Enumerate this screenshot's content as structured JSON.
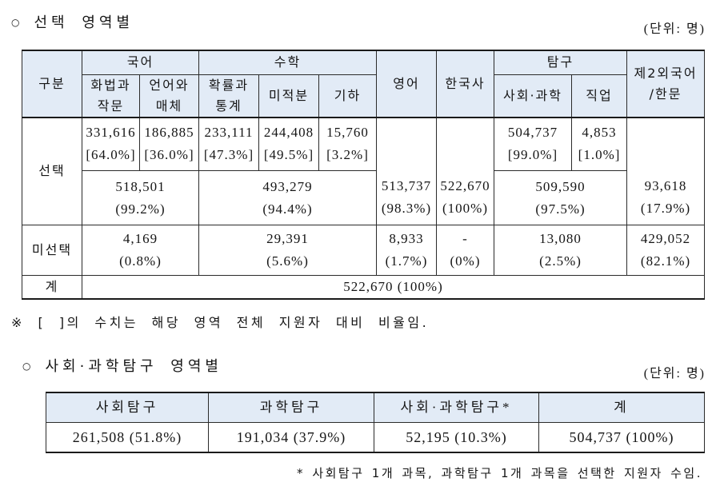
{
  "colors": {
    "header_bg": "#e2ebf6",
    "border": "#2b2b2b",
    "text": "#151515"
  },
  "section1": {
    "bullet": "○",
    "title": "선택 영역별",
    "unit": "(단위: 명)",
    "header": {
      "category": "구분",
      "korean": "국어",
      "math": "수학",
      "english": "영어",
      "korean_history": "한국사",
      "inquiry": "탐구",
      "second_foreign_language": [
        "제2외국어",
        "/한문"
      ],
      "speech_and_writing": [
        "화법과",
        "작문"
      ],
      "language_and_media": [
        "언어와",
        "매체"
      ],
      "probability_and_statistics": [
        "확률과",
        "통계"
      ],
      "calculus": "미적분",
      "geometry": "기하",
      "social_science": "사회·과학",
      "vocational": "직업"
    },
    "selected": {
      "label": "선택",
      "speech_and_writing": [
        "331,616",
        "[64.0%]"
      ],
      "language_and_media": [
        "186,885",
        "[36.0%]"
      ],
      "probability_and_statistics": [
        "233,111",
        "[47.3%]"
      ],
      "calculus": [
        "244,408",
        "[49.5%]"
      ],
      "geometry": [
        "15,760",
        "[3.2%]"
      ],
      "social_science": [
        "504,737",
        "[99.0%]"
      ],
      "vocational": [
        "4,853",
        "[1.0%]"
      ],
      "korean": [
        "518,501",
        "(99.2%)"
      ],
      "math": [
        "493,279",
        "(94.4%)"
      ],
      "english": [
        "513,737",
        "(98.3%)"
      ],
      "korean_history": [
        "522,670",
        "(100%)"
      ],
      "inquiry": [
        "509,590",
        "(97.5%)"
      ],
      "second_foreign_language": [
        "93,618",
        "(17.9%)"
      ]
    },
    "not_selected": {
      "label": "미선택",
      "korean": [
        "4,169",
        "(0.8%)"
      ],
      "math": [
        "29,391",
        "(5.6%)"
      ],
      "english": [
        "8,933",
        "(1.7%)"
      ],
      "korean_history": [
        "-",
        "(0%)"
      ],
      "inquiry": [
        "13,080",
        "(2.5%)"
      ],
      "second_foreign_language": [
        "429,052",
        "(82.1%)"
      ]
    },
    "total": {
      "label": "계",
      "value": "522,670 (100%)"
    },
    "note": "※ [ ]의 수치는 해당 영역 전체 지원자 대비 비율임."
  },
  "section2": {
    "bullet": "○",
    "title": "사회·과학탐구 영역별",
    "unit": "(단위: 명)",
    "columns": [
      "사회탐구",
      "과학탐구",
      "사회·과학탐구*",
      "계"
    ],
    "values": [
      "261,508 (51.8%)",
      "191,034 (37.9%)",
      "52,195 (10.3%)",
      "504,737 (100%)"
    ],
    "note": "* 사회탐구 1개 과목, 과학탐구 1개 과목을 선택한 지원자 수임."
  }
}
